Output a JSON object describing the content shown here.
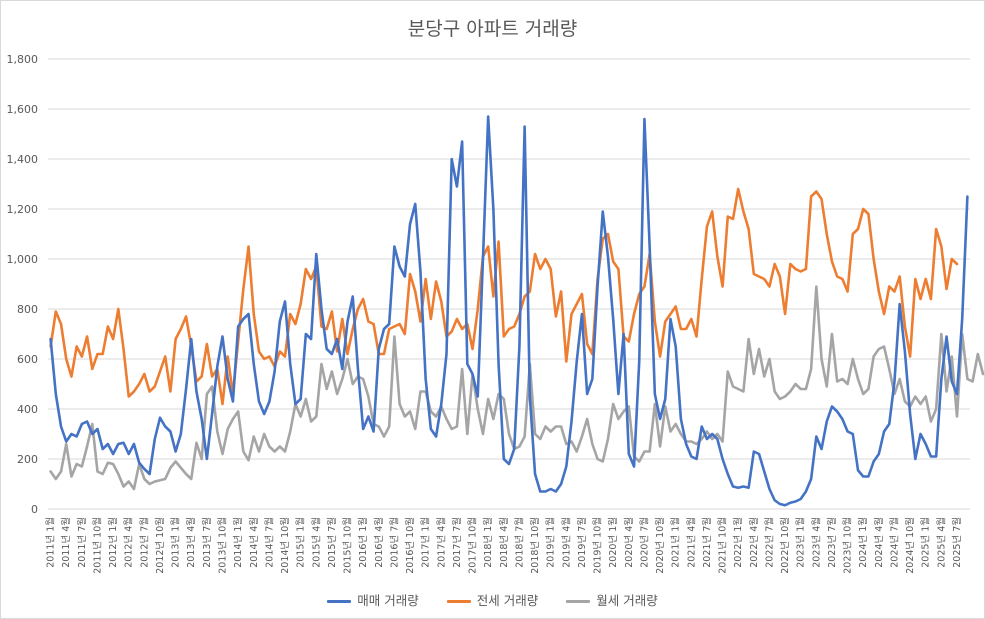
{
  "chart_data": {
    "type": "line",
    "title": "분당구 아파트 거래량",
    "xlabel": "",
    "ylabel": "",
    "ylim": [
      0,
      1800
    ],
    "y_ticks": [
      0,
      200,
      400,
      600,
      800,
      1000,
      1200,
      1400,
      1600,
      1800
    ],
    "y_tick_labels": [
      "0",
      "200",
      "400",
      "600",
      "800",
      "1,000",
      "1,200",
      "1,400",
      "1,600",
      "1,800"
    ],
    "grid": true,
    "legend_position": "bottom",
    "start": {
      "year": 2011,
      "month": 1
    },
    "x_tick_step_months": 3,
    "series": [
      {
        "name": "매매 거래량",
        "color": "#4472C4",
        "values": [
          680,
          460,
          330,
          270,
          300,
          290,
          340,
          350,
          300,
          320,
          240,
          260,
          220,
          260,
          265,
          220,
          260,
          185,
          160,
          140,
          280,
          365,
          330,
          310,
          230,
          300,
          480,
          680,
          470,
          360,
          200,
          380,
          570,
          690,
          520,
          430,
          730,
          760,
          780,
          580,
          430,
          380,
          430,
          550,
          750,
          830,
          580,
          420,
          440,
          700,
          680,
          1020,
          800,
          640,
          620,
          680,
          560,
          750,
          850,
          560,
          320,
          370,
          310,
          640,
          720,
          740,
          1050,
          970,
          930,
          1140,
          1220,
          950,
          520,
          320,
          290,
          420,
          620,
          1400,
          1290,
          1470,
          580,
          540,
          450,
          1000,
          1570,
          1200,
          580,
          200,
          180,
          240,
          650,
          1530,
          450,
          140,
          70,
          70,
          80,
          70,
          100,
          170,
          350,
          590,
          780,
          460,
          520,
          890,
          1190,
          1010,
          760,
          460,
          700,
          220,
          170,
          590,
          1560,
          1050,
          460,
          360,
          440,
          760,
          650,
          360,
          260,
          210,
          200,
          330,
          280,
          300,
          280,
          200,
          140,
          90,
          85,
          90,
          85,
          230,
          220,
          150,
          80,
          35,
          20,
          15,
          25,
          30,
          40,
          70,
          120,
          290,
          240,
          350,
          410,
          390,
          360,
          310,
          300,
          155,
          130,
          130,
          190,
          220,
          310,
          340,
          510,
          820,
          630,
          380,
          200,
          300,
          260,
          210,
          210,
          520,
          690,
          510,
          460,
          760,
          1250
        ]
      },
      {
        "name": "전세 거래량",
        "color": "#ED7D31",
        "values": [
          650,
          790,
          740,
          600,
          530,
          650,
          610,
          690,
          560,
          620,
          620,
          730,
          680,
          800,
          640,
          450,
          470,
          500,
          540,
          470,
          490,
          550,
          610,
          470,
          680,
          720,
          770,
          650,
          510,
          530,
          660,
          530,
          560,
          420,
          610,
          460,
          670,
          880,
          1050,
          780,
          630,
          600,
          610,
          570,
          630,
          610,
          780,
          740,
          820,
          960,
          920,
          970,
          730,
          720,
          790,
          630,
          760,
          620,
          720,
          800,
          840,
          750,
          740,
          620,
          620,
          720,
          730,
          740,
          700,
          940,
          870,
          750,
          920,
          760,
          910,
          830,
          690,
          710,
          760,
          720,
          740,
          640,
          800,
          1010,
          1050,
          850,
          1070,
          690,
          720,
          730,
          780,
          850,
          870,
          1020,
          960,
          1000,
          960,
          770,
          870,
          590,
          780,
          820,
          860,
          660,
          620,
          920,
          1080,
          1100,
          990,
          960,
          690,
          670,
          780,
          860,
          890,
          1020,
          750,
          610,
          750,
          780,
          810,
          720,
          720,
          760,
          690,
          920,
          1130,
          1190,
          1010,
          890,
          1170,
          1160,
          1280,
          1190,
          1120,
          940,
          930,
          920,
          890,
          980,
          930,
          780,
          980,
          960,
          950,
          960,
          1250,
          1270,
          1240,
          1100,
          990,
          930,
          920,
          870,
          1100,
          1120,
          1200,
          1180,
          1000,
          870,
          780,
          890,
          870,
          930,
          730,
          610,
          920,
          840,
          920,
          840,
          1120,
          1050,
          880,
          1000,
          980
        ]
      },
      {
        "name": "월세 거래량",
        "color": "#A5A5A5",
        "values": [
          150,
          120,
          150,
          260,
          130,
          180,
          170,
          250,
          340,
          150,
          140,
          185,
          180,
          140,
          90,
          110,
          80,
          180,
          120,
          100,
          110,
          115,
          120,
          165,
          190,
          165,
          140,
          120,
          265,
          200,
          460,
          490,
          310,
          220,
          320,
          360,
          390,
          230,
          195,
          290,
          230,
          300,
          250,
          230,
          250,
          230,
          310,
          420,
          370,
          440,
          350,
          370,
          580,
          480,
          550,
          460,
          520,
          600,
          500,
          530,
          520,
          450,
          340,
          330,
          290,
          330,
          690,
          420,
          370,
          390,
          320,
          470,
          470,
          390,
          370,
          410,
          360,
          320,
          330,
          560,
          300,
          540,
          400,
          300,
          440,
          360,
          460,
          440,
          300,
          240,
          250,
          290,
          580,
          300,
          280,
          330,
          310,
          330,
          330,
          260,
          270,
          230,
          290,
          360,
          260,
          200,
          190,
          280,
          420,
          360,
          390,
          410,
          210,
          190,
          230,
          230,
          420,
          250,
          410,
          310,
          340,
          300,
          270,
          270,
          260,
          280,
          310,
          280,
          300,
          270,
          550,
          490,
          480,
          470,
          680,
          540,
          640,
          530,
          600,
          470,
          440,
          450,
          470,
          500,
          480,
          480,
          560,
          890,
          600,
          490,
          700,
          510,
          520,
          500,
          600,
          520,
          460,
          480,
          610,
          640,
          650,
          560,
          460,
          520,
          430,
          410,
          450,
          420,
          450,
          350,
          400,
          700,
          470,
          610,
          370,
          700,
          520,
          510,
          620,
          540
        ]
      }
    ]
  }
}
